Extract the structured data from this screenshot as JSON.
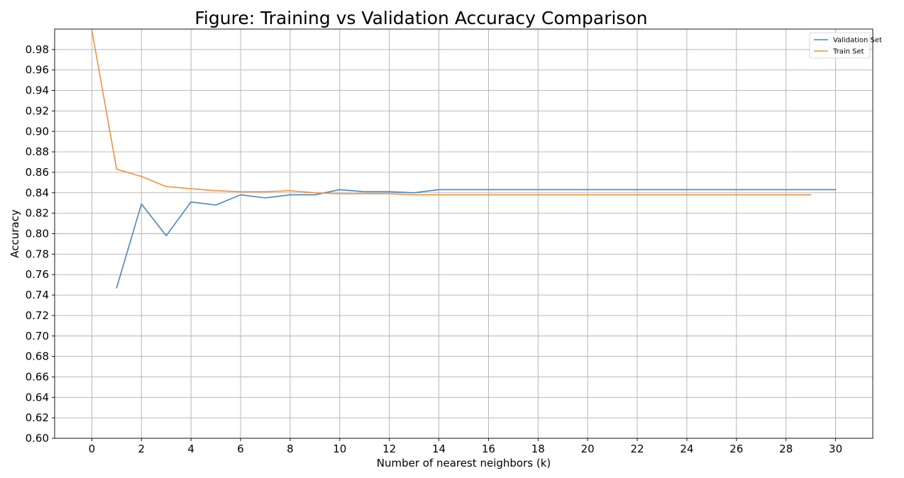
{
  "chart_data": {
    "type": "line",
    "title": "Figure: Training vs Validation Accuracy Comparison",
    "xlabel": "Number of nearest neighbors (k)",
    "ylabel": "Accuracy",
    "xlim": [
      -1.5,
      31.5
    ],
    "ylim": [
      0.6,
      1.0
    ],
    "xticks": [
      0,
      2,
      4,
      6,
      8,
      10,
      12,
      14,
      16,
      18,
      20,
      22,
      24,
      26,
      28,
      30
    ],
    "yticks": [
      "0.60",
      "0.62",
      "0.64",
      "0.66",
      "0.68",
      "0.70",
      "0.72",
      "0.74",
      "0.76",
      "0.78",
      "0.80",
      "0.82",
      "0.84",
      "0.86",
      "0.88",
      "0.90",
      "0.92",
      "0.94",
      "0.96",
      "0.98"
    ],
    "grid": true,
    "legend_position": "top-right",
    "series": [
      {
        "name": "Validation Set",
        "color": "#4b86ba",
        "x": [
          1,
          2,
          3,
          4,
          5,
          6,
          7,
          8,
          9,
          10,
          11,
          12,
          13,
          14,
          15,
          16,
          17,
          18,
          19,
          20,
          21,
          22,
          23,
          24,
          25,
          26,
          27,
          28,
          29,
          30
        ],
        "values": [
          0.747,
          0.829,
          0.798,
          0.831,
          0.828,
          0.838,
          0.835,
          0.838,
          0.838,
          0.843,
          0.841,
          0.841,
          0.84,
          0.843,
          0.843,
          0.843,
          0.843,
          0.843,
          0.843,
          0.843,
          0.843,
          0.843,
          0.843,
          0.843,
          0.843,
          0.843,
          0.843,
          0.843,
          0.843,
          0.843
        ]
      },
      {
        "name": "Train Set",
        "color": "#f0913d",
        "x": [
          0,
          1,
          2,
          3,
          4,
          5,
          6,
          7,
          8,
          9,
          10,
          11,
          12,
          13,
          14,
          15,
          16,
          17,
          18,
          19,
          20,
          21,
          22,
          23,
          24,
          25,
          26,
          27,
          28,
          29
        ],
        "values": [
          0.999,
          0.863,
          0.856,
          0.846,
          0.844,
          0.842,
          0.841,
          0.841,
          0.842,
          0.84,
          0.839,
          0.839,
          0.839,
          0.838,
          0.838,
          0.838,
          0.838,
          0.838,
          0.838,
          0.838,
          0.838,
          0.838,
          0.838,
          0.838,
          0.838,
          0.838,
          0.838,
          0.838,
          0.838,
          0.838
        ]
      }
    ]
  }
}
